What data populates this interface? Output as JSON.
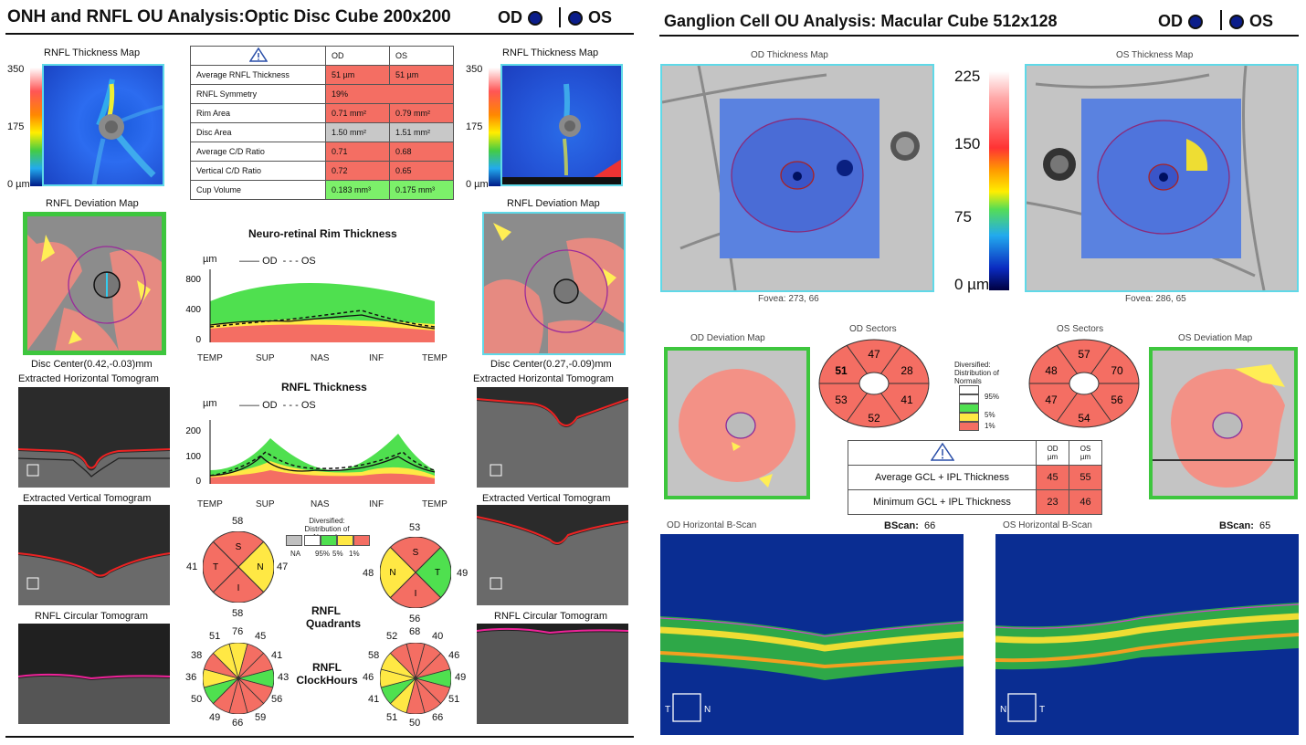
{
  "left": {
    "title": "ONH and RNFL OU Analysis:Optic Disc Cube 200x200",
    "od_label": "OD",
    "os_label": "OS",
    "thickness_map_title_od": "RNFL Thickness Map",
    "thickness_map_title_os": "RNFL Thickness Map",
    "scale": [
      "350",
      "175",
      "0 µm"
    ],
    "deviation_title_od": "RNFL Deviation Map",
    "deviation_title_os": "RNFL Deviation Map",
    "disc_center_od": "Disc Center(0.42,-0.03)mm",
    "disc_center_os": "Disc Center(0.27,-0.09)mm",
    "h_tomo_od": "Extracted Horizontal Tomogram",
    "h_tomo_os": "Extracted Horizontal Tomogram",
    "v_tomo_od": "Extracted Vertical Tomogram",
    "v_tomo_os": "Extracted Vertical Tomogram",
    "c_tomo_od": "RNFL Circular Tomogram",
    "c_tomo_os": "RNFL Circular Tomogram",
    "table": {
      "col_od": "OD",
      "col_os": "OS",
      "rows": [
        {
          "label": "Average RNFL Thickness",
          "od": "51 µm",
          "os": "51 µm",
          "status": "red"
        },
        {
          "label": "RNFL Symmetry",
          "od": "19%",
          "os": "",
          "status": "red"
        },
        {
          "label": "Rim Area",
          "od": "0.71 mm²",
          "os": "0.79 mm²",
          "status": "red"
        },
        {
          "label": "Disc Area",
          "od": "1.50 mm²",
          "os": "1.51 mm²",
          "status": "gray"
        },
        {
          "label": "Average C/D Ratio",
          "od": "0.71",
          "os": "0.68",
          "status": "red"
        },
        {
          "label": "Vertical C/D Ratio",
          "od": "0.72",
          "os": "0.65",
          "status": "red"
        },
        {
          "label": "Cup Volume",
          "od": "0.183 mm³",
          "os": "0.175 mm³",
          "status": "green"
        }
      ]
    },
    "rim_chart_title": "Neuro-retinal Rim Thickness",
    "rnfl_chart_title": "RNFL Thickness",
    "legend_unit": "µm",
    "legend_od": "OD",
    "legend_os": "OS",
    "x_ticks": [
      "TEMP",
      "SUP",
      "NAS",
      "INF",
      "TEMP"
    ],
    "rim_y_ticks": [
      "800",
      "400",
      "0"
    ],
    "rnfl_y_ticks": [
      "200",
      "100",
      "0"
    ],
    "norm_legend_title": "Diversified: Distribution of Normals",
    "norm_legend_items": [
      "NA",
      "95%",
      "5%",
      "1%"
    ],
    "quadrants_label": "RNFL Quadrants",
    "clock_label": "RNFL ClockHours",
    "quad_od": {
      "s": "58",
      "t": "41",
      "n": "47",
      "i": "58"
    },
    "quad_os": {
      "s": "53",
      "t": "49",
      "n": "48",
      "i": "56"
    },
    "clock_od": [
      "76",
      "45",
      "41",
      "43",
      "56",
      "59",
      "66",
      "49",
      "50",
      "36",
      "38",
      "51"
    ],
    "clock_os": [
      "68",
      "40",
      "46",
      "49",
      "51",
      "66",
      "50",
      "51",
      "41",
      "46",
      "58",
      "52"
    ]
  },
  "right": {
    "title": "Ganglion Cell OU Analysis: Macular Cube 512x128",
    "od_label": "OD",
    "os_label": "OS",
    "od_map_title": "OD Thickness Map",
    "os_map_title": "OS Thickness Map",
    "scale": [
      "225",
      "150",
      "75",
      "0 µm"
    ],
    "od_fovea": "Fovea: 273, 66",
    "os_fovea": "Fovea: 286, 65",
    "od_dev_title": "OD Deviation Map",
    "os_dev_title": "OS Deviation Map",
    "od_sectors_title": "OD Sectors",
    "os_sectors_title": "OS Sectors",
    "od_sectors": [
      "47",
      "28",
      "41",
      "52",
      "53",
      "51"
    ],
    "os_sectors": [
      "57",
      "70",
      "56",
      "54",
      "47",
      "48"
    ],
    "dist_title": "Diversified: Distribution of Normals",
    "dist_items": [
      "95%",
      "5%",
      "1%"
    ],
    "gcl_table": {
      "col_od": "OD µm",
      "col_os": "OS µm",
      "rows": [
        {
          "label": "Average GCL + IPL Thickness",
          "od": "45",
          "os": "55"
        },
        {
          "label": "Minimum GCL + IPL Thickness",
          "od": "23",
          "os": "46"
        }
      ]
    },
    "od_bscan_title": "OD Horizontal B-Scan",
    "os_bscan_title": "OS Horizontal B-Scan",
    "bscan_label": "BScan:",
    "od_bscan_num": "66",
    "os_bscan_num": "65"
  }
}
